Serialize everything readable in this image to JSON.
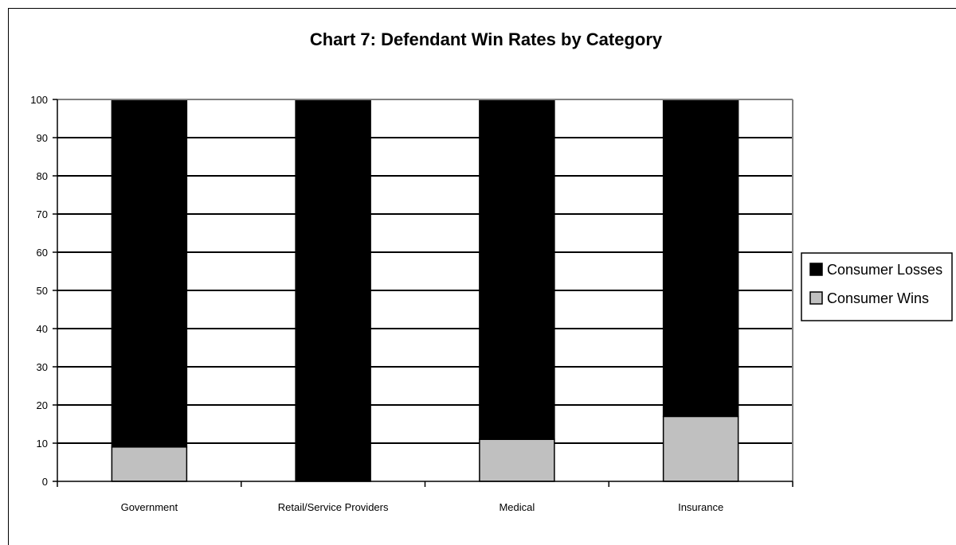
{
  "chart_data": {
    "type": "bar",
    "stacked": true,
    "title": "Chart 7: Defendant Win Rates by Category",
    "xlabel": "",
    "ylabel": "",
    "categories": [
      "Government",
      "Retail/Service Providers",
      "Medical",
      "Insurance"
    ],
    "series": [
      {
        "name": "Consumer Wins",
        "values": [
          9,
          0,
          11,
          17
        ],
        "color": "#c0c0c0"
      },
      {
        "name": "Consumer Losses",
        "values": [
          91,
          100,
          89,
          83
        ],
        "color": "#000000"
      }
    ],
    "ylim": [
      0,
      100
    ],
    "yticks": [
      0,
      10,
      20,
      30,
      40,
      50,
      60,
      70,
      80,
      90,
      100
    ],
    "grid": true,
    "legend": {
      "placement": "right",
      "entries": [
        "Consumer Losses",
        "Consumer Wins"
      ]
    }
  }
}
